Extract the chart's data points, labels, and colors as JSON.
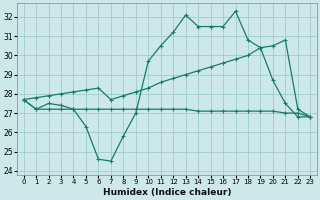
{
  "xlabel": "Humidex (Indice chaleur)",
  "xlim": [
    -0.5,
    23.5
  ],
  "ylim": [
    23.8,
    32.7
  ],
  "yticks": [
    24,
    25,
    26,
    27,
    28,
    29,
    30,
    31,
    32
  ],
  "xticks": [
    0,
    1,
    2,
    3,
    4,
    5,
    6,
    7,
    8,
    9,
    10,
    11,
    12,
    13,
    14,
    15,
    16,
    17,
    18,
    19,
    20,
    21,
    22,
    23
  ],
  "background_color": "#cde8e8",
  "grid_color": "#a0cccc",
  "line_color": "#1a7a6e",
  "series_main": [
    27.7,
    27.2,
    27.5,
    27.4,
    27.2,
    26.3,
    24.6,
    24.5,
    25.8,
    27.0,
    29.7,
    30.5,
    31.2,
    32.1,
    31.5,
    31.5,
    31.5,
    32.3,
    30.8,
    30.4,
    28.7,
    27.5,
    26.8,
    26.8
  ],
  "series_upper": [
    27.7,
    27.8,
    27.9,
    28.0,
    28.1,
    28.2,
    28.3,
    27.7,
    27.9,
    28.1,
    28.3,
    28.6,
    28.8,
    29.0,
    29.2,
    29.4,
    29.6,
    29.8,
    30.0,
    30.4,
    30.5,
    30.8,
    27.2,
    26.8
  ],
  "series_lower": [
    27.7,
    27.2,
    27.2,
    27.2,
    27.2,
    27.2,
    27.2,
    27.2,
    27.2,
    27.2,
    27.2,
    27.2,
    27.2,
    27.2,
    27.1,
    27.1,
    27.1,
    27.1,
    27.1,
    27.1,
    27.1,
    27.0,
    27.0,
    26.8
  ]
}
